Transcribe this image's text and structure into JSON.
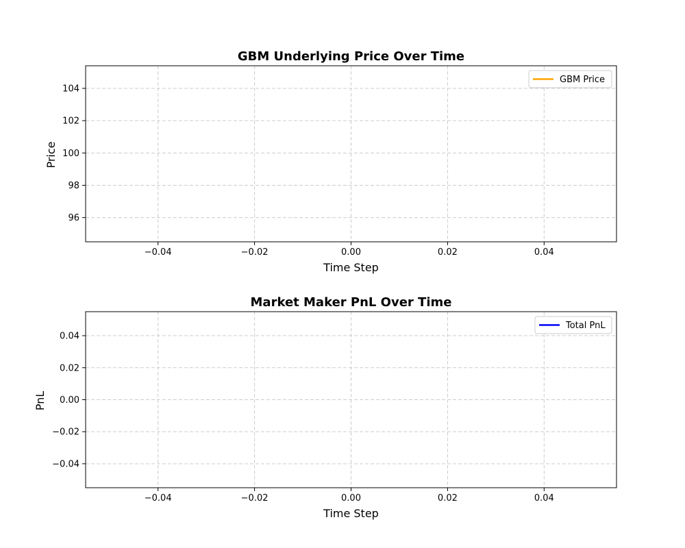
{
  "chart_data": [
    {
      "type": "line",
      "title": "GBM Underlying Price Over Time",
      "xlabel": "Time Step",
      "ylabel": "Price",
      "xlim": [
        -0.055,
        0.055
      ],
      "ylim": [
        94.5,
        105.4
      ],
      "xticks": [
        -0.04,
        -0.02,
        0.0,
        0.02,
        0.04
      ],
      "xtick_labels": [
        "−0.04",
        "−0.02",
        "0.00",
        "0.02",
        "0.04"
      ],
      "yticks": [
        96,
        98,
        100,
        102,
        104
      ],
      "ytick_labels": [
        "96",
        "98",
        "100",
        "102",
        "104"
      ],
      "grid": true,
      "legend_position": "top-right",
      "series": [
        {
          "name": "GBM Price",
          "color": "#ffa500",
          "x": [],
          "y": []
        }
      ]
    },
    {
      "type": "line",
      "title": "Market Maker PnL Over Time",
      "xlabel": "Time Step",
      "ylabel": "PnL",
      "xlim": [
        -0.055,
        0.055
      ],
      "ylim": [
        -0.055,
        0.055
      ],
      "xticks": [
        -0.04,
        -0.02,
        0.0,
        0.02,
        0.04
      ],
      "xtick_labels": [
        "−0.04",
        "−0.02",
        "0.00",
        "0.02",
        "0.04"
      ],
      "yticks": [
        -0.04,
        -0.02,
        0.0,
        0.02,
        0.04
      ],
      "ytick_labels": [
        "−0.04",
        "−0.02",
        "0.00",
        "0.02",
        "0.04"
      ],
      "grid": true,
      "legend_position": "top-right",
      "series": [
        {
          "name": "Total PnL",
          "color": "#0000ff",
          "x": [],
          "y": []
        }
      ]
    }
  ]
}
